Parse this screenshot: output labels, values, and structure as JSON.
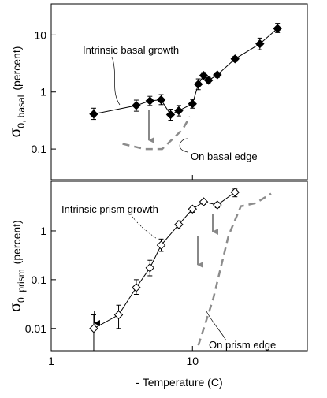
{
  "chart_data": [
    {
      "type": "line",
      "xlog": true,
      "ylog": true,
      "ylabel": {
        "symbol": "σ",
        "subscript": "0, basal",
        "unit": "(percent)"
      },
      "xlim": [
        1,
        65
      ],
      "xticks": [
        1,
        10
      ],
      "ylim": [
        0.029,
        35
      ],
      "yticks": [
        0.1,
        1,
        10
      ],
      "annotations": [
        "Intrinsic basal growth",
        "On basal edge"
      ],
      "series": [
        {
          "color": "#000000",
          "marker": "diamond",
          "fill": "#000000",
          "x": [
            2,
            4,
            5,
            6,
            7,
            8,
            10,
            11,
            12,
            13,
            15,
            20,
            30,
            40
          ],
          "values": [
            0.41,
            0.58,
            0.7,
            0.73,
            0.4,
            0.47,
            0.62,
            1.37,
            1.95,
            1.6,
            2.0,
            3.8,
            7.0,
            13
          ],
          "lower": [
            0.33,
            0.46,
            0.58,
            0.6,
            0.32,
            0.38,
            0.52,
            1.1,
            1.7,
            1.4,
            1.8,
            3.4,
            5.5,
            11
          ],
          "upper": [
            0.52,
            0.72,
            0.84,
            0.9,
            0.5,
            0.58,
            0.74,
            1.7,
            2.2,
            1.8,
            2.2,
            4.2,
            8.8,
            16
          ]
        },
        {
          "color": "#8c8c8c",
          "dashed": true,
          "x": [
            3.2,
            4.6,
            6.1,
            8.5,
            9.6
          ],
          "values": [
            0.123,
            0.1,
            0.1,
            0.22,
            0.37
          ]
        }
      ]
    },
    {
      "type": "line",
      "xlog": true,
      "ylog": true,
      "ylabel": {
        "symbol": "σ",
        "subscript": "0, prism",
        "unit": "(percent)"
      },
      "xlabel": "- Temperature (C)",
      "xlim": [
        1,
        65
      ],
      "xticks": [
        1,
        10
      ],
      "ylim": [
        0.0035,
        10.4
      ],
      "yticks": [
        0.01,
        0.1,
        1
      ],
      "annotations": [
        "Intrinsic prism growth",
        "On prism edge"
      ],
      "series": [
        {
          "color": "#000000",
          "marker": "diamond",
          "fill": "#ffffff",
          "x": [
            2,
            3,
            4,
            5,
            6,
            8,
            10,
            12,
            15,
            20
          ],
          "values": [
            0.01,
            0.019,
            0.069,
            0.175,
            0.51,
            1.35,
            2.8,
            3.95,
            3.4,
            6.2
          ],
          "lower": [
            0.0035,
            0.01,
            0.05,
            0.12,
            0.38,
            1.1,
            2.4,
            3.5,
            3.0,
            5.0
          ],
          "upper": [
            0.019,
            0.03,
            0.1,
            0.25,
            0.68,
            1.6,
            3.2,
            4.3,
            3.8,
            7.2
          ]
        },
        {
          "color": "#8c8c8c",
          "dashed": true,
          "x": [
            11,
            14,
            18,
            22,
            28,
            36
          ],
          "values": [
            0.0045,
            0.04,
            0.8,
            3.2,
            3.7,
            5.8
          ]
        }
      ]
    }
  ]
}
